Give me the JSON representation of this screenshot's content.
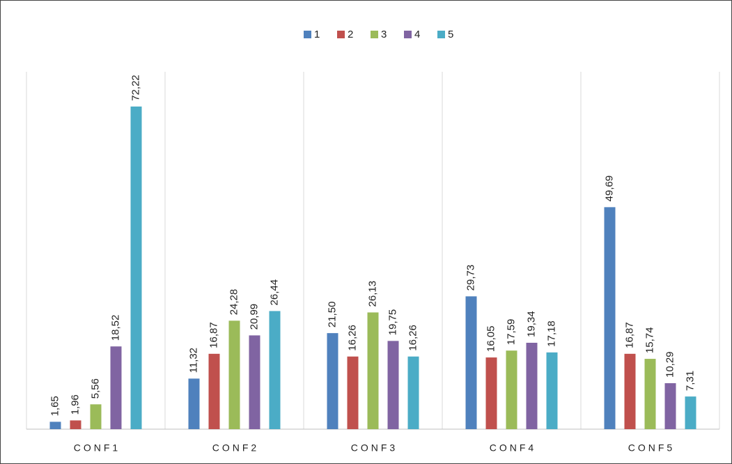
{
  "chart_data": {
    "type": "bar",
    "categories": [
      "CONF1",
      "CONF2",
      "CONF3",
      "CONF4",
      "CONF5"
    ],
    "series": [
      {
        "name": "1",
        "color": "#4f81bd",
        "values": [
          1.65,
          11.32,
          21.5,
          29.73,
          49.69
        ],
        "value_labels": [
          "1,65",
          "11,32",
          "21,50",
          "29,73",
          "49,69"
        ]
      },
      {
        "name": "2",
        "color": "#c0504d",
        "values": [
          1.96,
          16.87,
          16.26,
          16.05,
          16.87
        ],
        "value_labels": [
          "1,96",
          "16,87",
          "16,26",
          "16,05",
          "16,87"
        ]
      },
      {
        "name": "3",
        "color": "#9bbb59",
        "values": [
          5.56,
          24.28,
          26.13,
          17.59,
          15.74
        ],
        "value_labels": [
          "5,56",
          "24,28",
          "26,13",
          "17,59",
          "15,74"
        ]
      },
      {
        "name": "4",
        "color": "#8064a2",
        "values": [
          18.52,
          20.99,
          19.75,
          19.34,
          10.29
        ],
        "value_labels": [
          "18,52",
          "20,99",
          "19,75",
          "19,34",
          "10,29"
        ]
      },
      {
        "name": "5",
        "color": "#4bacc6",
        "values": [
          72.22,
          26.44,
          16.26,
          17.18,
          7.31
        ],
        "value_labels": [
          "72,22",
          "26,44",
          "16,26",
          "17,18",
          "7,31"
        ]
      }
    ],
    "ylim": [
      0,
      80
    ]
  }
}
